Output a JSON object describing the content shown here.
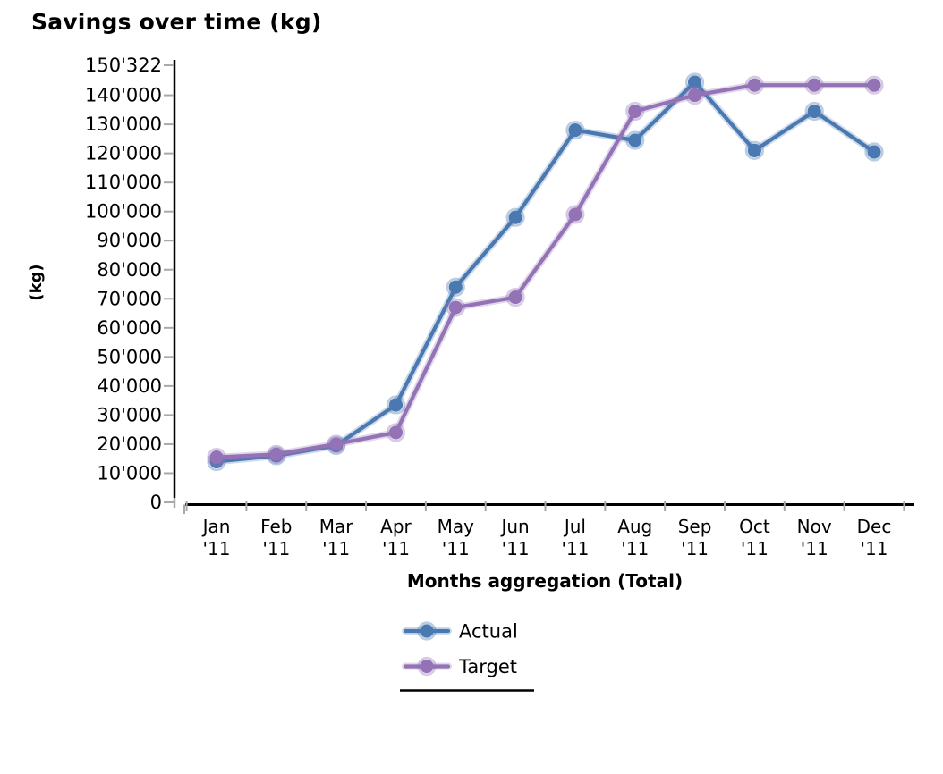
{
  "chart_data": {
    "type": "line",
    "title": "Savings over time (kg)",
    "xlabel": "Months aggregation (Total)",
    "ylabel": "(kg)",
    "categories": [
      "Jan '11",
      "Feb '11",
      "Mar '11",
      "Apr '11",
      "May '11",
      "Jun '11",
      "Jul '11",
      "Aug '11",
      "Sep '11",
      "Oct '11",
      "Nov '11",
      "Dec '11"
    ],
    "series": [
      {
        "name": "Actual",
        "color": "#4a79b2",
        "values": [
          14000,
          16000,
          19500,
          33500,
          74000,
          98000,
          128000,
          124500,
          144500,
          121000,
          134500,
          120500
        ]
      },
      {
        "name": "Target",
        "color": "#9472b6",
        "values": [
          15500,
          16500,
          20000,
          24000,
          67000,
          70500,
          99000,
          134500,
          140000,
          143500,
          143500,
          143500
        ]
      }
    ],
    "ylim": [
      0,
      150322
    ],
    "y_ticks": [
      {
        "value": 0,
        "label": "0"
      },
      {
        "value": 10000,
        "label": "10'000"
      },
      {
        "value": 20000,
        "label": "20'000"
      },
      {
        "value": 30000,
        "label": "30'000"
      },
      {
        "value": 40000,
        "label": "40'000"
      },
      {
        "value": 50000,
        "label": "50'000"
      },
      {
        "value": 60000,
        "label": "60'000"
      },
      {
        "value": 70000,
        "label": "70'000"
      },
      {
        "value": 80000,
        "label": "80'000"
      },
      {
        "value": 90000,
        "label": "90'000"
      },
      {
        "value": 100000,
        "label": "100'000"
      },
      {
        "value": 110000,
        "label": "110'000"
      },
      {
        "value": 120000,
        "label": "120'000"
      },
      {
        "value": 130000,
        "label": "130'000"
      },
      {
        "value": 140000,
        "label": "140'000"
      },
      {
        "value": 150322,
        "label": "150'322"
      }
    ],
    "legend_position": "bottom-center",
    "grid": false,
    "marker": "circle",
    "axis_color": "#000000",
    "tick_color": "#a9a9a9"
  }
}
